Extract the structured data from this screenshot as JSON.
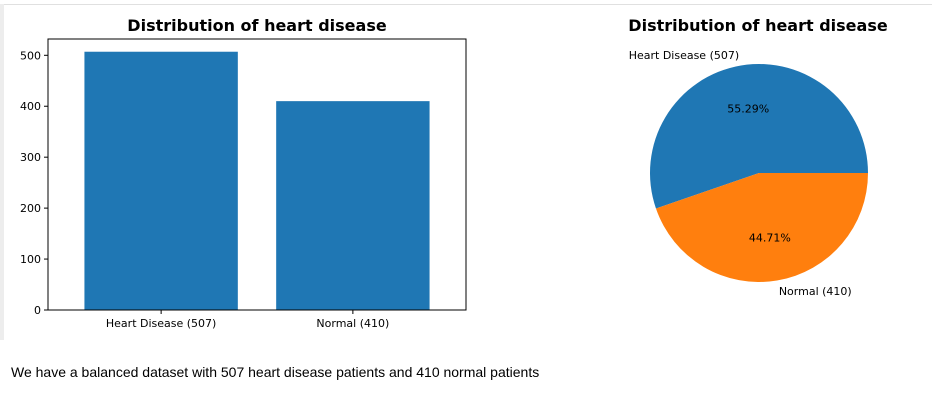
{
  "chart_data": [
    {
      "type": "bar",
      "title": "Distribution of heart disease",
      "categories": [
        "Heart Disease (507)",
        "Normal (410)"
      ],
      "values": [
        507,
        410
      ],
      "ylim": [
        0,
        532
      ],
      "yticks": [
        "0",
        "100",
        "200",
        "300",
        "400",
        "500"
      ],
      "xlabel": "",
      "ylabel": "",
      "grid": false,
      "color": "#1f77b4"
    },
    {
      "type": "pie",
      "title": "Distribution of heart disease",
      "labels": [
        "Heart Disease (507)",
        "Normal (410)"
      ],
      "values": [
        507,
        410
      ],
      "percent_labels": [
        "55.29%",
        "44.71%"
      ],
      "colors": [
        "#1f77b4",
        "#ff7f0e"
      ]
    }
  ],
  "note": {
    "text": "We have a balanced dataset with 507 heart disease patients and 410 normal patients"
  }
}
